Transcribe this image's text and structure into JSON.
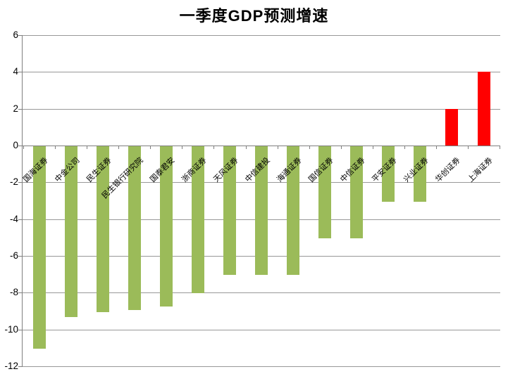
{
  "chart_data": {
    "type": "bar",
    "title": "一季度GDP预测增速",
    "categories": [
      "国海证券",
      "中金公司",
      "民生证券",
      "民生银行研究院",
      "国泰君安",
      "浙商证券",
      "天风证券",
      "中信建投",
      "海通证券",
      "国信证券",
      "中信证券",
      "平安证券",
      "兴业证券",
      "华创证券",
      "上海证券"
    ],
    "values": [
      -11,
      -9.3,
      -9,
      -8.9,
      -8.7,
      -8,
      -7,
      -7,
      -7,
      -5,
      -5,
      -3,
      -3,
      2,
      4
    ],
    "xlabel": "",
    "ylabel": "",
    "ylim": [
      -12,
      6
    ],
    "ytick_step": 2,
    "yticks": [
      6,
      4,
      2,
      0,
      -2,
      -4,
      -6,
      -8,
      -10,
      -12
    ],
    "grid": true,
    "legend": false,
    "bar_color_positive": "#FF0000",
    "bar_color_negative": "#9BBB59",
    "gridline_color": "#989898",
    "axis_color": "#7f7f7f",
    "text_color": "#000000"
  }
}
